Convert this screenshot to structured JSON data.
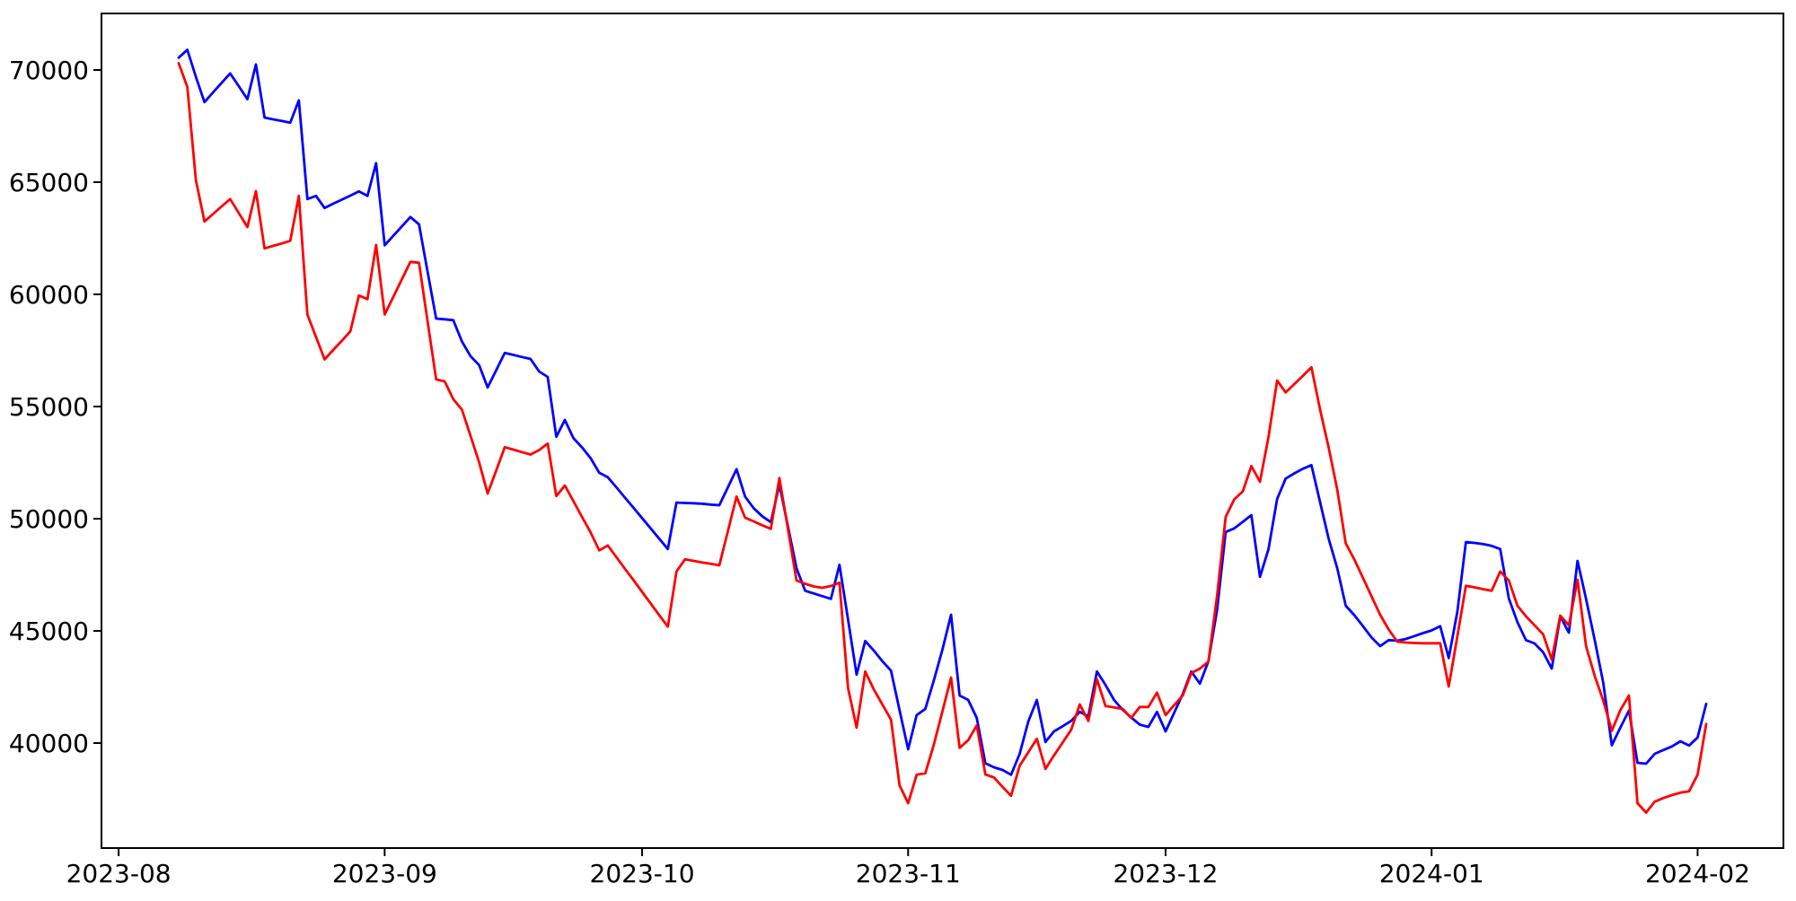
{
  "chart_data": {
    "type": "line",
    "title": "",
    "xlabel": "",
    "ylabel": "",
    "grid": false,
    "legend": "none",
    "background_color": "#ffffff",
    "axes_color": "#000000",
    "x_tick_labels": [
      "2023-08",
      "2023-09",
      "2023-10",
      "2023-11",
      "2023-12",
      "2024-01",
      "2024-02"
    ],
    "x_tick_dates": [
      "2023-08-01",
      "2023-09-01",
      "2023-10-01",
      "2023-11-01",
      "2023-12-01",
      "2024-01-01",
      "2024-02-01"
    ],
    "y_ticks": [
      40000,
      45000,
      50000,
      55000,
      60000,
      65000,
      70000
    ],
    "ylim": [
      35320,
      72520
    ],
    "xlim_dates": [
      "2023-07-30",
      "2024-02-11"
    ],
    "start_date": "2023-08-08",
    "frequency": "daily",
    "n_points": 179,
    "series": [
      {
        "name": "blue-series",
        "color": "#0000ff",
        "values": [
          70550,
          70900,
          69700,
          68570,
          69000,
          69430,
          69850,
          69280,
          68700,
          70250,
          67880,
          67800,
          67730,
          67650,
          68650,
          64250,
          64390,
          63850,
          64040,
          64220,
          64400,
          64590,
          64390,
          65850,
          62190,
          62610,
          63030,
          63450,
          63120,
          61020,
          58920,
          58890,
          58850,
          57900,
          57250,
          56850,
          55850,
          56620,
          57390,
          57300,
          57210,
          57120,
          56560,
          56320,
          53650,
          54400,
          53590,
          53180,
          52700,
          52050,
          51850,
          51400,
          50940,
          50490,
          50030,
          49570,
          49110,
          48650,
          50720,
          50700,
          50690,
          50670,
          50630,
          50600,
          51400,
          52210,
          50990,
          50470,
          50110,
          49850,
          51520,
          49650,
          47790,
          46790,
          46670,
          46550,
          46430,
          47950,
          45500,
          43050,
          44550,
          44120,
          43650,
          43230,
          41470,
          39720,
          41250,
          41520,
          42790,
          44170,
          45720,
          42120,
          41920,
          41120,
          39100,
          38920,
          38800,
          38590,
          39520,
          40960,
          41920,
          40050,
          40520,
          40750,
          40990,
          41390,
          41190,
          43190,
          42590,
          41920,
          41480,
          41140,
          40820,
          40720,
          41390,
          40520,
          41350,
          42190,
          43190,
          42650,
          43650,
          45930,
          49410,
          49570,
          49860,
          50160,
          47410,
          48650,
          50880,
          51790,
          52020,
          52230,
          52390,
          50740,
          49120,
          47800,
          46120,
          45700,
          45210,
          44710,
          44320,
          44590,
          44560,
          44640,
          44770,
          44900,
          45020,
          45210,
          43790,
          45860,
          48960,
          48920,
          48870,
          48790,
          48650,
          46450,
          45390,
          44590,
          44440,
          44050,
          43320,
          45650,
          44920,
          48120,
          46430,
          44600,
          42700,
          39900,
          40690,
          41450,
          39120,
          39080,
          39520,
          39690,
          39850,
          40080,
          39890,
          40250,
          41750
        ]
      },
      {
        "name": "red-series",
        "color": "#ff0000",
        "values": [
          70300,
          69250,
          65100,
          63250,
          63580,
          63920,
          64250,
          63630,
          63000,
          64600,
          62050,
          62160,
          62270,
          62390,
          64390,
          59100,
          58100,
          57100,
          57520,
          57930,
          58350,
          59950,
          59790,
          62200,
          59100,
          59880,
          60670,
          61450,
          61410,
          58810,
          56210,
          56120,
          55330,
          54860,
          53700,
          52520,
          51120,
          52150,
          53190,
          53080,
          52970,
          52860,
          53060,
          53350,
          51010,
          51480,
          50780,
          50080,
          49390,
          48590,
          48810,
          48290,
          47770,
          47260,
          46740,
          46220,
          45700,
          45190,
          47650,
          48190,
          48120,
          48050,
          47990,
          47920,
          49450,
          50990,
          50050,
          49880,
          49710,
          49550,
          51810,
          49530,
          47250,
          47100,
          46980,
          46920,
          47000,
          47150,
          42450,
          40690,
          43190,
          42390,
          41720,
          41050,
          38120,
          37320,
          38590,
          38650,
          39930,
          41420,
          42920,
          39790,
          40130,
          40790,
          38600,
          38470,
          38050,
          37650,
          38990,
          39590,
          40190,
          38850,
          39450,
          40020,
          40590,
          41720,
          40990,
          42850,
          41650,
          41590,
          41520,
          41120,
          41610,
          41610,
          42250,
          41250,
          41690,
          42120,
          43120,
          43320,
          43630,
          46560,
          50080,
          50860,
          51220,
          52350,
          51650,
          53650,
          56160,
          55630,
          56000,
          56370,
          56750,
          54870,
          53190,
          51310,
          48900,
          48180,
          47360,
          46540,
          45720,
          45060,
          44520,
          44480,
          44460,
          44450,
          44450,
          44450,
          42520,
          44760,
          47010,
          46940,
          46860,
          46790,
          47650,
          47250,
          46120,
          45650,
          45250,
          44850,
          43720,
          45680,
          45250,
          47280,
          44320,
          43000,
          41900,
          40550,
          41470,
          42120,
          37320,
          36900,
          37390,
          37550,
          37680,
          37790,
          37850,
          38590,
          40850
        ]
      }
    ]
  }
}
